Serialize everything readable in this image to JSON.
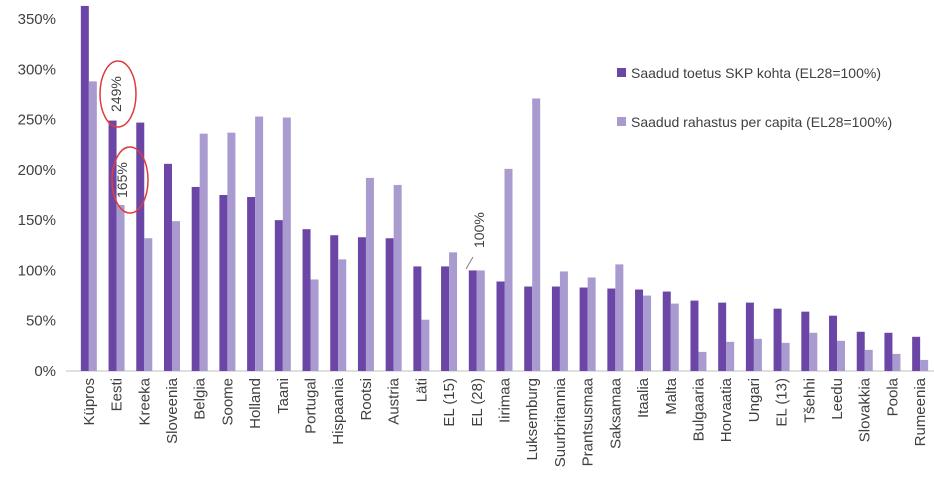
{
  "chart_data": {
    "type": "bar",
    "title": "",
    "xlabel": "",
    "ylabel": "",
    "ylim": [
      0,
      350
    ],
    "yticks": [
      "0%",
      "50%",
      "100%",
      "150%",
      "200%",
      "250%",
      "300%",
      "350%"
    ],
    "grid": false,
    "legend_position": "right",
    "categories": [
      "Küpros",
      "Eesti",
      "Kreeka",
      "Sloveenia",
      "Belgia",
      "Soome",
      "Holland",
      "Taani",
      "Portugal",
      "Hispaania",
      "Rootsi",
      "Austria",
      "Läti",
      "EL (15)",
      "EL (28)",
      "Iirimaa",
      "Luksemburg",
      "Suurbritannia",
      "Prantsusmaa",
      "Saksamaa",
      "Itaalia",
      "Malta",
      "Bulgaaria",
      "Horvaatia",
      "Ungari",
      "EL (13)",
      "Tšehhi",
      "Leedu",
      "Slovakkia",
      "Poola",
      "Rumeenia"
    ],
    "series": [
      {
        "name": "Saadud toetus SKP kohta (EL28=100%)",
        "color": "#6b46a6",
        "values": [
          363,
          249,
          247,
          206,
          183,
          175,
          173,
          150,
          141,
          135,
          133,
          132,
          104,
          104,
          100,
          89,
          84,
          84,
          83,
          82,
          81,
          79,
          70,
          68,
          68,
          62,
          59,
          55,
          39,
          38,
          34
        ]
      },
      {
        "name": "Saadud rahastus per capita (EL28=100%)",
        "color": "#a99bcf",
        "values": [
          288,
          165,
          132,
          149,
          236,
          237,
          253,
          252,
          91,
          111,
          192,
          185,
          51,
          118,
          100,
          201,
          271,
          99,
          93,
          106,
          75,
          67,
          19,
          29,
          32,
          28,
          38,
          30,
          21,
          17,
          11
        ]
      }
    ],
    "annotations": [
      "249%",
      "165%",
      "100%"
    ]
  }
}
